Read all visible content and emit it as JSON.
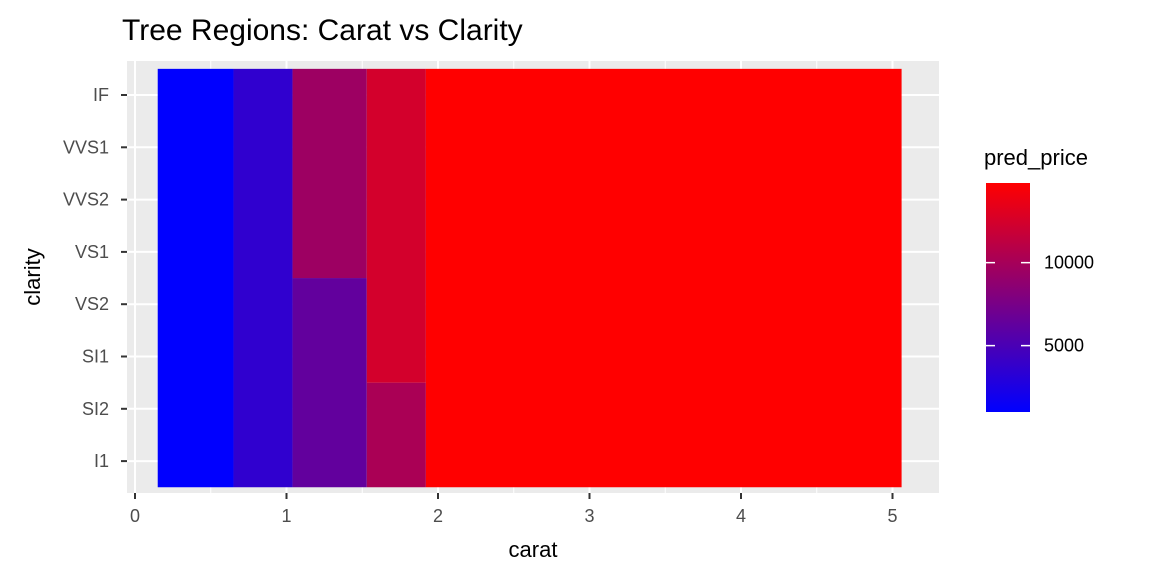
{
  "chart_data": {
    "type": "heatmap",
    "title": "Tree Regions: Carat vs Clarity",
    "xlabel": "carat",
    "ylabel": "clarity",
    "xlim": [
      -0.1,
      5.3
    ],
    "xticks": [
      0,
      1,
      2,
      3,
      4,
      5
    ],
    "categories_y": [
      "I1",
      "SI2",
      "SI1",
      "VS2",
      "VS1",
      "VVS2",
      "VVS1",
      "IF"
    ],
    "grid": true,
    "legend": {
      "title": "pred_price",
      "position": "right",
      "low_color": "#0000ff",
      "high_color": "#ff0000",
      "min": 1000,
      "max": 14800,
      "ticks": [
        5000,
        10000
      ]
    },
    "regions": [
      {
        "x_min": 0.15,
        "x_max": 0.65,
        "y_from": "I1",
        "y_to": "IF",
        "value": 1000
      },
      {
        "x_min": 0.65,
        "x_max": 1.04,
        "y_from": "I1",
        "y_to": "IF",
        "value": 3600
      },
      {
        "x_min": 1.04,
        "x_max": 1.53,
        "y_from": "I1",
        "y_to": "VS2",
        "value": 6300
      },
      {
        "x_min": 1.04,
        "x_max": 1.53,
        "y_from": "VS1",
        "y_to": "IF",
        "value": 9500
      },
      {
        "x_min": 1.53,
        "x_max": 1.92,
        "y_from": "I1",
        "y_to": "SI2",
        "value": 10200
      },
      {
        "x_min": 1.53,
        "x_max": 1.92,
        "y_from": "SI1",
        "y_to": "IF",
        "value": 12400
      },
      {
        "x_min": 1.92,
        "x_max": 5.06,
        "y_from": "I1",
        "y_to": "IF",
        "value": 14800
      }
    ]
  }
}
